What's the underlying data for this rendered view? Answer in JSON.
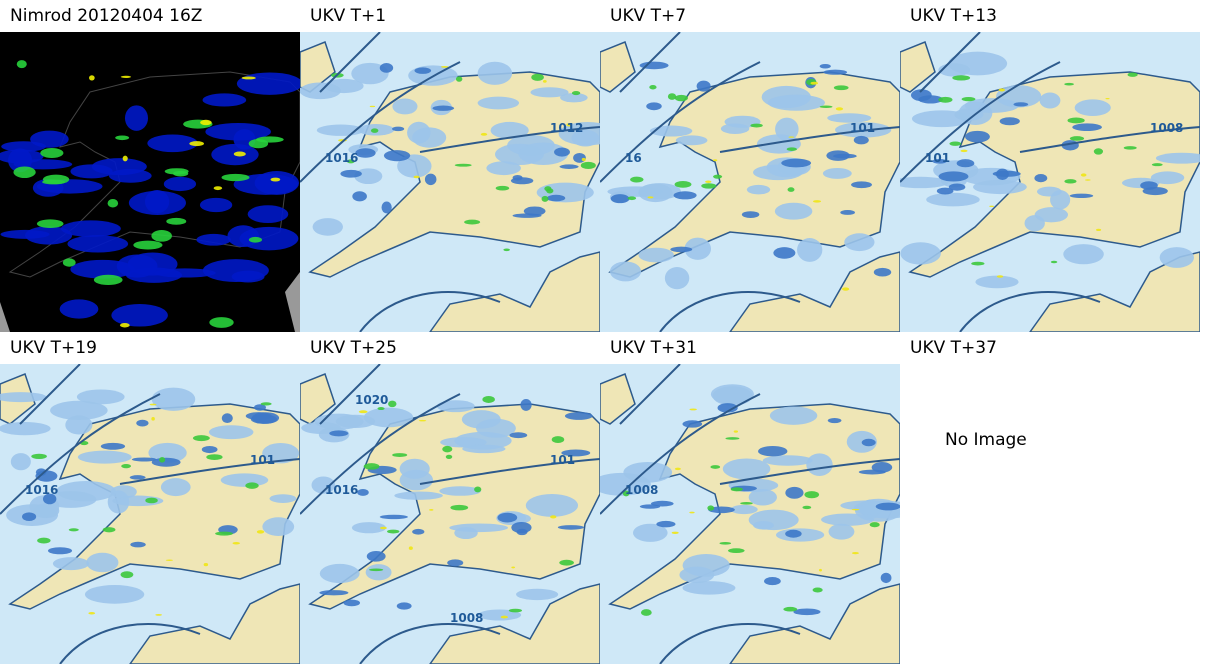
{
  "panels": [
    {
      "title": "Nimrod 20120404 16Z"
    },
    {
      "title": "UKV T+1",
      "contour_labels": [
        "1016",
        "1012"
      ]
    },
    {
      "title": "UKV T+7",
      "contour_labels": [
        "16",
        "101"
      ]
    },
    {
      "title": "UKV T+13",
      "contour_labels": [
        "101",
        "1008"
      ]
    },
    {
      "title": "UKV T+19",
      "contour_labels": [
        "1016",
        "101"
      ]
    },
    {
      "title": "UKV T+25",
      "contour_labels": [
        "1016",
        "101",
        "1008",
        "1020"
      ]
    },
    {
      "title": "UKV T+31",
      "contour_labels": [
        "1008"
      ]
    },
    {
      "title": "UKV T+37",
      "placeholder": "No Image"
    }
  ]
}
